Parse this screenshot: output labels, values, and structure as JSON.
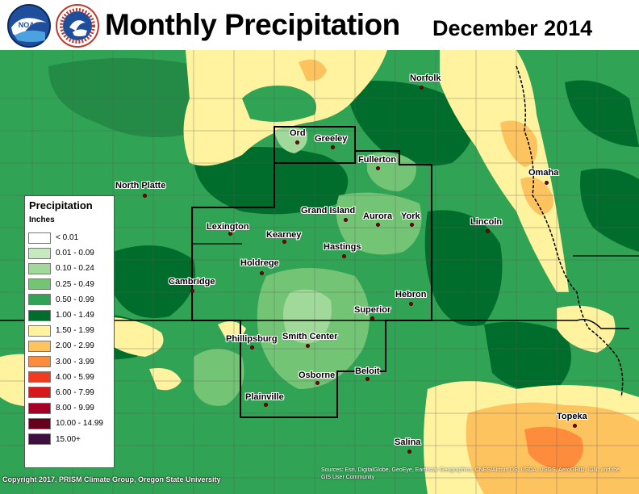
{
  "header": {
    "title": "Monthly Precipitation",
    "date": "December 2014"
  },
  "logos": {
    "noaa_text": "NOAA",
    "nws_text": "NATIONAL WEATHER SERVICE"
  },
  "legend": {
    "title": "Precipitation",
    "units": "Inches",
    "items": [
      {
        "label": "< 0.01",
        "color": "#ffffff"
      },
      {
        "label": "0.01 - 0.09",
        "color": "#c7e9c0"
      },
      {
        "label": "0.10 - 0.24",
        "color": "#a1d99b"
      },
      {
        "label": "0.25 - 0.49",
        "color": "#74c476"
      },
      {
        "label": "0.50 - 0.99",
        "color": "#31a354"
      },
      {
        "label": "1.00 - 1.49",
        "color": "#006d2c"
      },
      {
        "label": "1.50 - 1.99",
        "color": "#fff3a0"
      },
      {
        "label": "2.00 - 2.99",
        "color": "#fdc35f"
      },
      {
        "label": "3.00 - 3.99",
        "color": "#fd8d3c"
      },
      {
        "label": "4.00 - 5.99",
        "color": "#f03b20"
      },
      {
        "label": "6.00 - 7.99",
        "color": "#d7191c"
      },
      {
        "label": "8.00 - 9.99",
        "color": "#a50026"
      },
      {
        "label": "10.00 - 14.99",
        "color": "#67001f"
      },
      {
        "label": "15.00+",
        "color": "#3f0f3f"
      }
    ]
  },
  "cities": [
    {
      "name": "Norfolk"
    },
    {
      "name": "Ord"
    },
    {
      "name": "Greeley"
    },
    {
      "name": "Fullerton"
    },
    {
      "name": "North Platte"
    },
    {
      "name": "Omaha"
    },
    {
      "name": "Grand Island"
    },
    {
      "name": "Aurora"
    },
    {
      "name": "York"
    },
    {
      "name": "Lincoln"
    },
    {
      "name": "Lexington"
    },
    {
      "name": "Kearney"
    },
    {
      "name": "Hastings"
    },
    {
      "name": "Holdrege"
    },
    {
      "name": "Cambridge"
    },
    {
      "name": "Hebron"
    },
    {
      "name": "Superior"
    },
    {
      "name": "Phillipsburg"
    },
    {
      "name": "Smith Center"
    },
    {
      "name": "Beloit"
    },
    {
      "name": "Osborne"
    },
    {
      "name": "Plainville"
    },
    {
      "name": "Topeka"
    },
    {
      "name": "Salina"
    }
  ],
  "footer": {
    "copyright": "Copyright 2017, PRISM Climate Group, Oregon State University",
    "sources": "Sources: Esri, DigitalGlobe, GeoEye, Earthstar Geographics, CNES/Airbus DS, USDA, USGS, AeroGRID, IGN, and the GIS User Community"
  },
  "colors": {
    "base_green": "#31a354",
    "dark_green": "#006d2c",
    "boundary": "#000000"
  }
}
